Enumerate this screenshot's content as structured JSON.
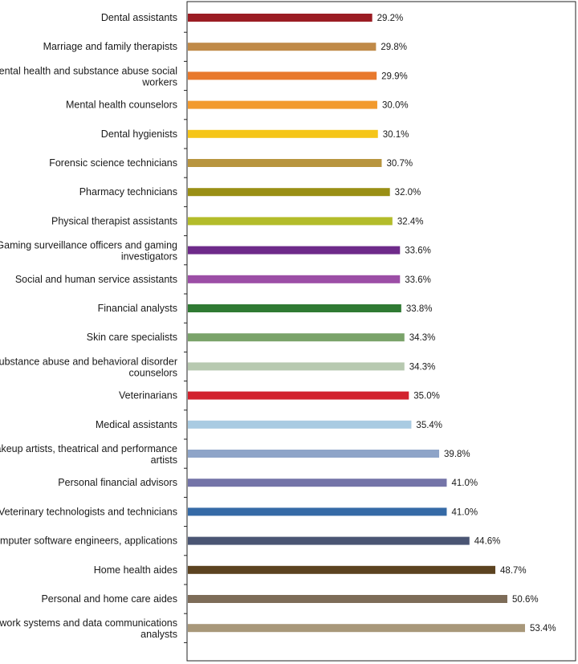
{
  "chart_data": {
    "type": "bar",
    "orientation": "horizontal",
    "grid": false,
    "xlim": [
      0,
      60
    ],
    "categories": [
      "Dental assistants",
      "Marriage and family therapists",
      "Mental health and substance abuse social workers",
      "Mental health counselors",
      "Dental hygienists",
      "Forensic science technicians",
      "Pharmacy technicians",
      "Physical therapist assistants",
      "Gaming surveillance officers and gaming investigators",
      "Social and human service assistants",
      "Financial analysts",
      "Skin care specialists",
      "Substance abuse and behavioral disorder counselors",
      "Veterinarians",
      "Medical assistants",
      "Makeup artists, theatrical and performance artists",
      "Personal financial advisors",
      "Veterinary technologists and technicians",
      "Computer software engineers, applications",
      "Home health aides",
      "Personal and home care aides",
      "Network systems and data communications analysts"
    ],
    "category_lines": [
      [
        "Dental assistants"
      ],
      [
        "Marriage and family therapists"
      ],
      [
        "Mental health and substance abuse social",
        "workers"
      ],
      [
        "Mental health counselors"
      ],
      [
        "Dental hygienists"
      ],
      [
        "Forensic science technicians"
      ],
      [
        "Pharmacy technicians"
      ],
      [
        "Physical therapist assistants"
      ],
      [
        "Gaming surveillance officers and gaming",
        "investigators"
      ],
      [
        "Social and human service assistants"
      ],
      [
        "Financial analysts"
      ],
      [
        "Skin care specialists"
      ],
      [
        "Substance abuse and behavioral disorder",
        "counselors"
      ],
      [
        "Veterinarians"
      ],
      [
        "Medical assistants"
      ],
      [
        "Makeup artists, theatrical and performance",
        "artists"
      ],
      [
        "Personal financial advisors"
      ],
      [
        "Veterinary technologists and technicians"
      ],
      [
        "Computer software engineers, applications"
      ],
      [
        "Home health aides"
      ],
      [
        "Personal and home care aides"
      ],
      [
        "Network systems and data communications",
        "analysts"
      ]
    ],
    "values": [
      29.2,
      29.8,
      29.9,
      30.0,
      30.1,
      30.7,
      32.0,
      32.4,
      33.6,
      33.6,
      33.8,
      34.3,
      34.3,
      35.0,
      35.4,
      39.8,
      41.0,
      41.0,
      44.6,
      48.7,
      50.6,
      53.4
    ],
    "value_labels": [
      "29.2%",
      "29.8%",
      "29.9%",
      "30.0%",
      "30.1%",
      "30.7%",
      "32.0%",
      "32.4%",
      "33.6%",
      "33.6%",
      "33.8%",
      "34.3%",
      "34.3%",
      "35.0%",
      "35.4%",
      "39.8%",
      "41.0%",
      "41.0%",
      "44.6%",
      "48.7%",
      "50.6%",
      "53.4%"
    ],
    "colors": [
      "#9b1c23",
      "#c08a48",
      "#e8792d",
      "#f29a2e",
      "#f5c518",
      "#b8953f",
      "#9a8f15",
      "#b3bc2a",
      "#6e2a8a",
      "#9c4ea6",
      "#2f7a33",
      "#7aa36a",
      "#b7c9b0",
      "#d2222e",
      "#a9cbe2",
      "#8ea4c8",
      "#7474a8",
      "#356aa6",
      "#4a5573",
      "#5c4320",
      "#7d6c58",
      "#a8987a"
    ]
  }
}
